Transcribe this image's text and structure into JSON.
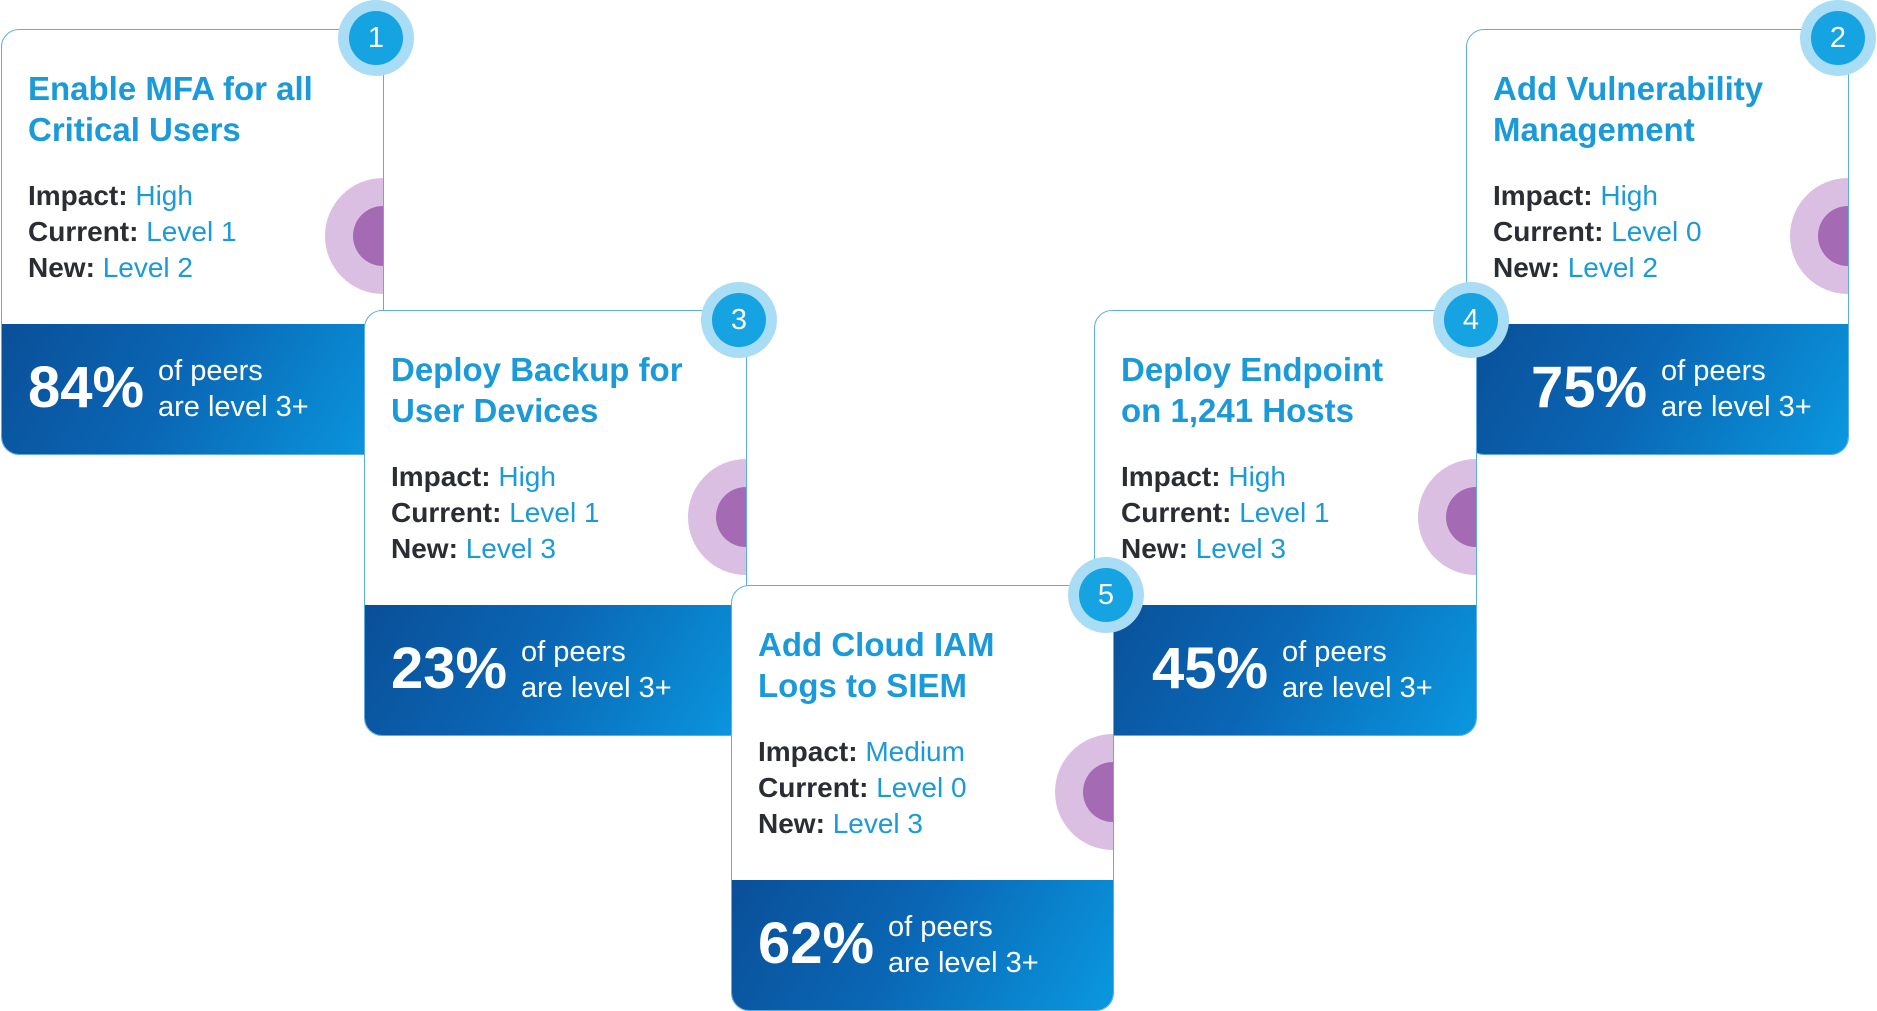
{
  "colors": {
    "title_accent": "#1b9ad9",
    "label_text": "#2b2d35",
    "footer_gradient_start": "#0a4f98",
    "footer_gradient_end": "#0a98df",
    "badge": "#15a3e2",
    "badge_ring": "#a9ddf6",
    "deco_outer": "#dabfe2",
    "deco_inner": "#a46ab4"
  },
  "labels": {
    "impact": "Impact:",
    "current": "Current:",
    "new": "New:"
  },
  "cards": [
    {
      "number": "1",
      "title_line1": "Enable MFA for all",
      "title_line2": "Critical Users",
      "impact": "High",
      "current": "Level 1",
      "new": "Level 2",
      "peer_pct": "84%",
      "peer_line1": "of peers",
      "peer_line2": "are level 3+"
    },
    {
      "number": "2",
      "title_line1": "Add Vulnerability",
      "title_line2": "Management",
      "impact": "High",
      "current": "Level 0",
      "new": "Level 2",
      "peer_pct": "75%",
      "peer_line1": "of peers",
      "peer_line2": "are level 3+"
    },
    {
      "number": "3",
      "title_line1": "Deploy Backup for",
      "title_line2": "User Devices",
      "impact": "High",
      "current": "Level 1",
      "new": "Level 3",
      "peer_pct": "23%",
      "peer_line1": "of peers",
      "peer_line2": "are level 3+"
    },
    {
      "number": "4",
      "title_line1": "Deploy Endpoint",
      "title_line2": "on 1,241 Hosts",
      "impact": "High",
      "current": "Level 1",
      "new": "Level 3",
      "peer_pct": "45%",
      "peer_line1": "of peers",
      "peer_line2": "are level 3+"
    },
    {
      "number": "5",
      "title_line1": "Add Cloud IAM",
      "title_line2": "Logs to SIEM",
      "impact": "Medium",
      "current": "Level 0",
      "new": "Level 3",
      "peer_pct": "62%",
      "peer_line1": "of peers",
      "peer_line2": "are level 3+"
    }
  ]
}
